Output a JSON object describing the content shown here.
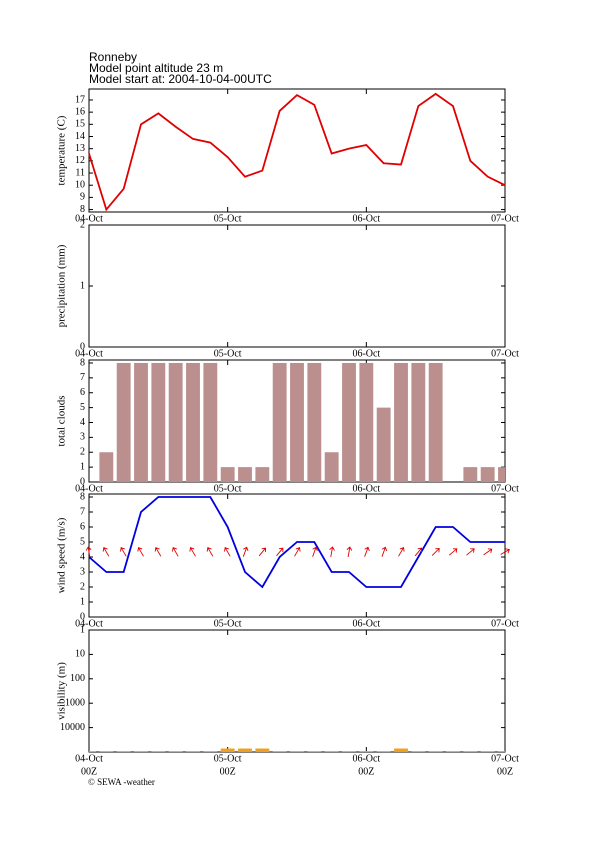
{
  "header": {
    "location": "Ronneby",
    "altitude": "Model point altitude  23 m",
    "model_start": "Model start at: 2004-10-04-00UTC"
  },
  "footer": "© SEWA -weather",
  "chart_data": [
    {
      "type": "line",
      "y_label": "temperature (C)",
      "x": [
        0,
        3,
        6,
        9,
        12,
        15,
        18,
        21,
        24,
        27,
        30,
        33,
        36,
        39,
        42,
        45,
        48,
        51,
        54,
        57,
        60,
        63,
        66,
        69,
        72
      ],
      "xlim": [
        0,
        72
      ],
      "xticks": [
        {
          "value": 0,
          "label": "04-Oct"
        },
        {
          "value": 24,
          "label": "05-Oct"
        },
        {
          "value": 48,
          "label": "06-Oct"
        },
        {
          "value": 72,
          "label": "07-Oct"
        }
      ],
      "ylim": [
        7.8,
        17.9
      ],
      "yticks": [
        8,
        9,
        10,
        11,
        12,
        13,
        14,
        15,
        16,
        17
      ],
      "color": "#e00000",
      "values": [
        12.6,
        8,
        9.7,
        15,
        15.9,
        14.8,
        13.8,
        13.5,
        12.3,
        10.7,
        11.2,
        16.1,
        17.4,
        16.6,
        12.6,
        13,
        13.3,
        11.8,
        11.7,
        16.5,
        17.5,
        16.5,
        12,
        10.7,
        10
      ]
    },
    {
      "type": "bar",
      "y_label": "precipitation (mm)",
      "xlim": [
        0,
        72
      ],
      "xticks": [
        {
          "value": 0,
          "label": "04-Oct"
        },
        {
          "value": 24,
          "label": "05-Oct"
        },
        {
          "value": 48,
          "label": "06-Oct"
        },
        {
          "value": 72,
          "label": "07-Oct"
        }
      ],
      "ylim": [
        0,
        2
      ],
      "yticks": [
        0,
        1,
        2
      ]
    },
    {
      "type": "bar",
      "y_label": "total clouds",
      "x": [
        0,
        3,
        6,
        9,
        12,
        15,
        18,
        21,
        24,
        27,
        30,
        33,
        36,
        39,
        42,
        45,
        48,
        51,
        54,
        57,
        60,
        63,
        66,
        69,
        72
      ],
      "xlim": [
        0,
        72
      ],
      "xticks": [
        {
          "value": 0,
          "label": "04-Oct"
        },
        {
          "value": 24,
          "label": "05-Oct"
        },
        {
          "value": 48,
          "label": "06-Oct"
        },
        {
          "value": 72,
          "label": "07-Oct"
        }
      ],
      "ylim": [
        0,
        8.2
      ],
      "yticks": [
        0,
        1,
        2,
        3,
        4,
        5,
        6,
        7,
        8
      ],
      "color": "#bc8f8f",
      "values": [
        0,
        2,
        8,
        8,
        8,
        8,
        8,
        8,
        1,
        1,
        1,
        8,
        8,
        8,
        2,
        8,
        8,
        5,
        8,
        8,
        8,
        0,
        1,
        1,
        1
      ]
    },
    {
      "type": "line",
      "y_label": "wind speed (m/s)",
      "x": [
        0,
        3,
        6,
        9,
        12,
        15,
        18,
        21,
        24,
        27,
        30,
        33,
        36,
        39,
        42,
        45,
        48,
        51,
        54,
        57,
        60,
        63,
        66,
        69,
        72
      ],
      "xlim": [
        0,
        72
      ],
      "xticks": [
        {
          "value": 0,
          "label": "04-Oct"
        },
        {
          "value": 24,
          "label": "05-Oct"
        },
        {
          "value": 48,
          "label": "06-Oct"
        },
        {
          "value": 72,
          "label": "07-Oct"
        }
      ],
      "ylim": [
        0,
        8.2
      ],
      "yticks": [
        0,
        1,
        2,
        3,
        4,
        5,
        6,
        7,
        8
      ],
      "color": "#0000e0",
      "values": [
        4,
        3,
        3,
        7,
        8,
        8,
        8,
        8,
        6,
        3,
        2,
        4,
        5,
        5,
        3,
        3,
        2,
        2,
        2,
        4,
        6,
        6,
        5,
        5,
        5
      ],
      "wind_direction": {
        "color": "#e00000",
        "values": [
          350,
          330,
          330,
          330,
          330,
          330,
          330,
          330,
          330,
          20,
          40,
          40,
          30,
          20,
          10,
          10,
          20,
          20,
          30,
          40,
          45,
          50,
          50,
          55,
          60
        ]
      }
    },
    {
      "type": "bar",
      "y_label": "visibility (m)",
      "log": true,
      "invert": true,
      "x": [
        0,
        3,
        6,
        9,
        12,
        15,
        18,
        21,
        24,
        27,
        30,
        33,
        36,
        39,
        42,
        45,
        48,
        51,
        54,
        57,
        60,
        63,
        66,
        69,
        72
      ],
      "xlim": [
        0,
        72
      ],
      "xticks": [
        {
          "value": 0,
          "label": "04-Oct"
        },
        {
          "value": 24,
          "label": "05-Oct"
        },
        {
          "value": 48,
          "label": "06-Oct"
        },
        {
          "value": 72,
          "label": "07-Oct"
        }
      ],
      "xtick_sublabels": [
        "00Z",
        "00Z",
        "00Z",
        "00Z"
      ],
      "ylim": [
        1,
        100000
      ],
      "yticks": [
        1,
        10,
        100,
        1000,
        10000
      ],
      "color": "#f0a020",
      "values": [
        92000,
        92000,
        92000,
        92000,
        92000,
        92000,
        92000,
        92000,
        72000,
        72000,
        72000,
        92000,
        92000,
        92000,
        92000,
        92000,
        92000,
        92000,
        72000,
        92000,
        92000,
        92000,
        92000,
        92000,
        92000
      ]
    }
  ]
}
